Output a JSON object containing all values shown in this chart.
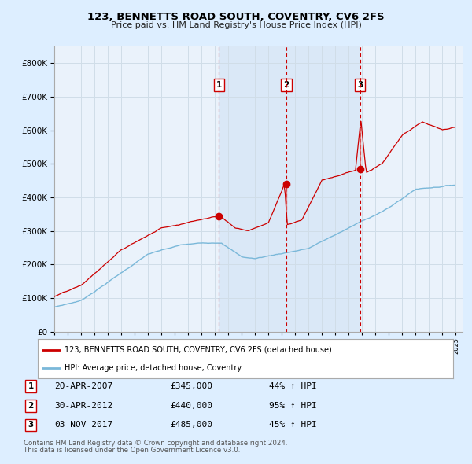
{
  "title": "123, BENNETTS ROAD SOUTH, COVENTRY, CV6 2FS",
  "subtitle": "Price paid vs. HM Land Registry's House Price Index (HPI)",
  "legend_line1": "123, BENNETTS ROAD SOUTH, COVENTRY, CV6 2FS (detached house)",
  "legend_line2": "HPI: Average price, detached house, Coventry",
  "transactions": [
    {
      "num": 1,
      "date": "20-APR-2007",
      "price": 345000,
      "pct": "44%",
      "dir": "↑",
      "year_x": 2007.3
    },
    {
      "num": 2,
      "date": "30-APR-2012",
      "price": 440000,
      "pct": "95%",
      "dir": "↑",
      "year_x": 2012.33
    },
    {
      "num": 3,
      "date": "03-NOV-2017",
      "price": 485000,
      "pct": "45%",
      "dir": "↑",
      "year_x": 2017.84
    }
  ],
  "footer_line1": "Contains HM Land Registry data © Crown copyright and database right 2024.",
  "footer_line2": "This data is licensed under the Open Government Licence v3.0.",
  "hpi_color": "#7ab8d9",
  "price_color": "#cc0000",
  "dot_color": "#cc0000",
  "vline_color": "#cc0000",
  "bg_color": "#ddeeff",
  "plot_bg": "#eaf2fb",
  "grid_color": "#d0dde8",
  "ylim": [
    0,
    850000
  ],
  "xlim_start": 1995,
  "xlim_end": 2025.5
}
